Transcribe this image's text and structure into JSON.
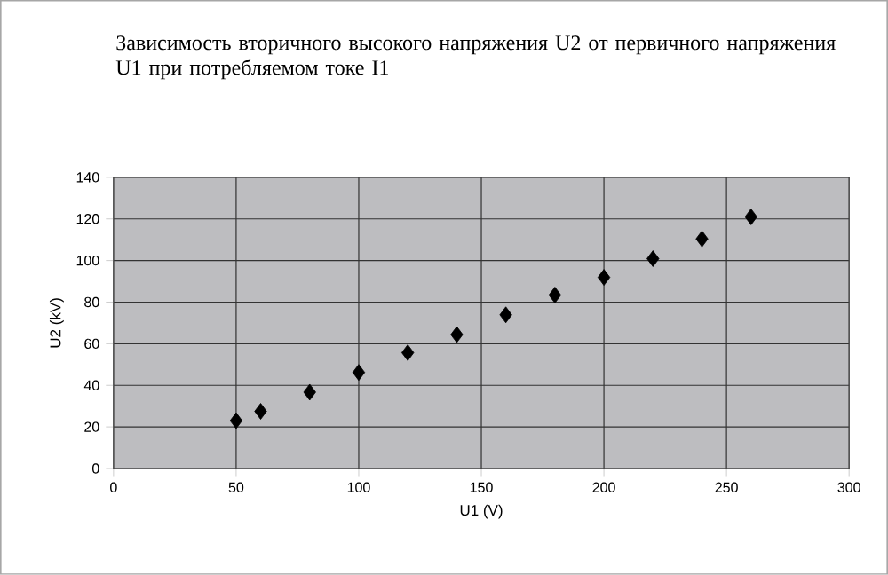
{
  "chart_data": {
    "type": "scatter",
    "title": "Зависимость вторичного высокого напряжения U2 от первичного напряжения U1 при потребляемом токе I1",
    "xlabel": "U1 (V)",
    "ylabel": "U2 (kV)",
    "x": [
      50,
      60,
      80,
      100,
      120,
      140,
      160,
      180,
      200,
      220,
      240,
      260
    ],
    "values": [
      23,
      27.5,
      36.7,
      46.2,
      55.7,
      64.4,
      73.9,
      83.4,
      91.9,
      100.9,
      110.4,
      121
    ],
    "color": "#000000",
    "marker": "diamond",
    "grid": true,
    "xlim": [
      0,
      300
    ],
    "xticks": [
      0,
      50,
      100,
      150,
      200,
      250,
      300
    ],
    "ylim": [
      0,
      140
    ],
    "yticks": [
      0,
      20,
      40,
      60,
      80,
      100,
      120,
      140
    ]
  }
}
